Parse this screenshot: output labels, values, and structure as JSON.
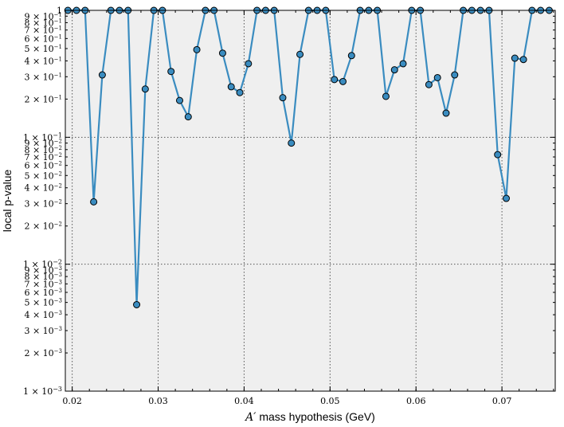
{
  "chart_data": {
    "type": "line",
    "title": "",
    "xlabel_prime": "A′",
    "xlabel_rest": " mass hypothesis (GeV)",
    "ylabel": "local p-value",
    "xlim": [
      0.0192,
      0.0762
    ],
    "ylim": [
      0.001,
      1
    ],
    "yscale": "log",
    "grid": true,
    "x_ticks": [
      0.02,
      0.03,
      0.04,
      0.05,
      0.06,
      0.07
    ],
    "x_tick_labels": [
      "0.02",
      "0.03",
      "0.04",
      "0.05",
      "0.06",
      "0.07"
    ],
    "y_major_ticks": [
      {
        "value": 0.001,
        "mant": "1",
        "exp": "−3"
      },
      {
        "value": 0.01,
        "mant": "1",
        "exp": "−2"
      },
      {
        "value": 0.1,
        "mant": "1",
        "exp": "−1"
      },
      {
        "value": 1,
        "mant": "1",
        "exp": ""
      }
    ],
    "y_minor_ticks": [
      {
        "value": 0.002,
        "mant": "2",
        "exp": "−3"
      },
      {
        "value": 0.003,
        "mant": "3",
        "exp": "−3"
      },
      {
        "value": 0.004,
        "mant": "4",
        "exp": "−3"
      },
      {
        "value": 0.005,
        "mant": "5",
        "exp": "−3"
      },
      {
        "value": 0.006,
        "mant": "6",
        "exp": "−3"
      },
      {
        "value": 0.007,
        "mant": "7",
        "exp": "−3"
      },
      {
        "value": 0.008,
        "mant": "8",
        "exp": "−3"
      },
      {
        "value": 0.009,
        "mant": "9",
        "exp": "−3"
      },
      {
        "value": 0.02,
        "mant": "2",
        "exp": "−2"
      },
      {
        "value": 0.03,
        "mant": "3",
        "exp": "−2"
      },
      {
        "value": 0.04,
        "mant": "4",
        "exp": "−2"
      },
      {
        "value": 0.05,
        "mant": "5",
        "exp": "−2"
      },
      {
        "value": 0.06,
        "mant": "6",
        "exp": "−2"
      },
      {
        "value": 0.07,
        "mant": "7",
        "exp": "−2"
      },
      {
        "value": 0.08,
        "mant": "8",
        "exp": "−2"
      },
      {
        "value": 0.09,
        "mant": "9",
        "exp": "−2"
      },
      {
        "value": 0.2,
        "mant": "2",
        "exp": "−1"
      },
      {
        "value": 0.3,
        "mant": "3",
        "exp": "−1"
      },
      {
        "value": 0.4,
        "mant": "4",
        "exp": "−1"
      },
      {
        "value": 0.5,
        "mant": "5",
        "exp": "−1"
      },
      {
        "value": 0.6,
        "mant": "6",
        "exp": "−1"
      },
      {
        "value": 0.7,
        "mant": "7",
        "exp": "−1"
      },
      {
        "value": 0.8,
        "mant": "8",
        "exp": "−1"
      },
      {
        "value": 0.9,
        "mant": "9",
        "exp": "−1"
      }
    ],
    "colors": {
      "line": "#3a8cc0",
      "marker_fill": "#3a8cc0",
      "marker_edge": "#000000",
      "background": "#efefef",
      "grid": "#555555"
    },
    "series": [
      {
        "x": [
          0.0195,
          0.0205,
          0.0215,
          0.0225,
          0.0235,
          0.0245,
          0.0255,
          0.0265,
          0.0275,
          0.0285,
          0.0295,
          0.0305,
          0.0315,
          0.0325,
          0.0335,
          0.0345,
          0.0355,
          0.0365,
          0.0375,
          0.0385,
          0.0395,
          0.0405,
          0.0415,
          0.0425,
          0.0435,
          0.0445,
          0.0455,
          0.0465,
          0.0475,
          0.0485,
          0.0495,
          0.0505,
          0.0515,
          0.0525,
          0.0535,
          0.0545,
          0.0555,
          0.0565,
          0.0575,
          0.0585,
          0.0595,
          0.0605,
          0.0615,
          0.0625,
          0.0635,
          0.0645,
          0.0655,
          0.0665,
          0.0675,
          0.0685,
          0.0695,
          0.0705,
          0.0715,
          0.0725,
          0.0735,
          0.0745,
          0.0755
        ],
        "y": [
          1,
          1,
          1,
          0.031,
          0.31,
          1,
          1,
          1,
          0.0048,
          0.24,
          1,
          1,
          0.33,
          0.195,
          0.145,
          0.49,
          1,
          1,
          0.46,
          0.25,
          0.225,
          0.38,
          1,
          1,
          1,
          0.205,
          0.09,
          0.45,
          1,
          1,
          1,
          0.285,
          0.275,
          0.44,
          1,
          1,
          1,
          0.21,
          0.34,
          0.38,
          1,
          1,
          0.26,
          0.295,
          0.155,
          0.31,
          1,
          1,
          1,
          1,
          0.073,
          0.033,
          0.42,
          0.41,
          1,
          1,
          1
        ]
      }
    ]
  }
}
